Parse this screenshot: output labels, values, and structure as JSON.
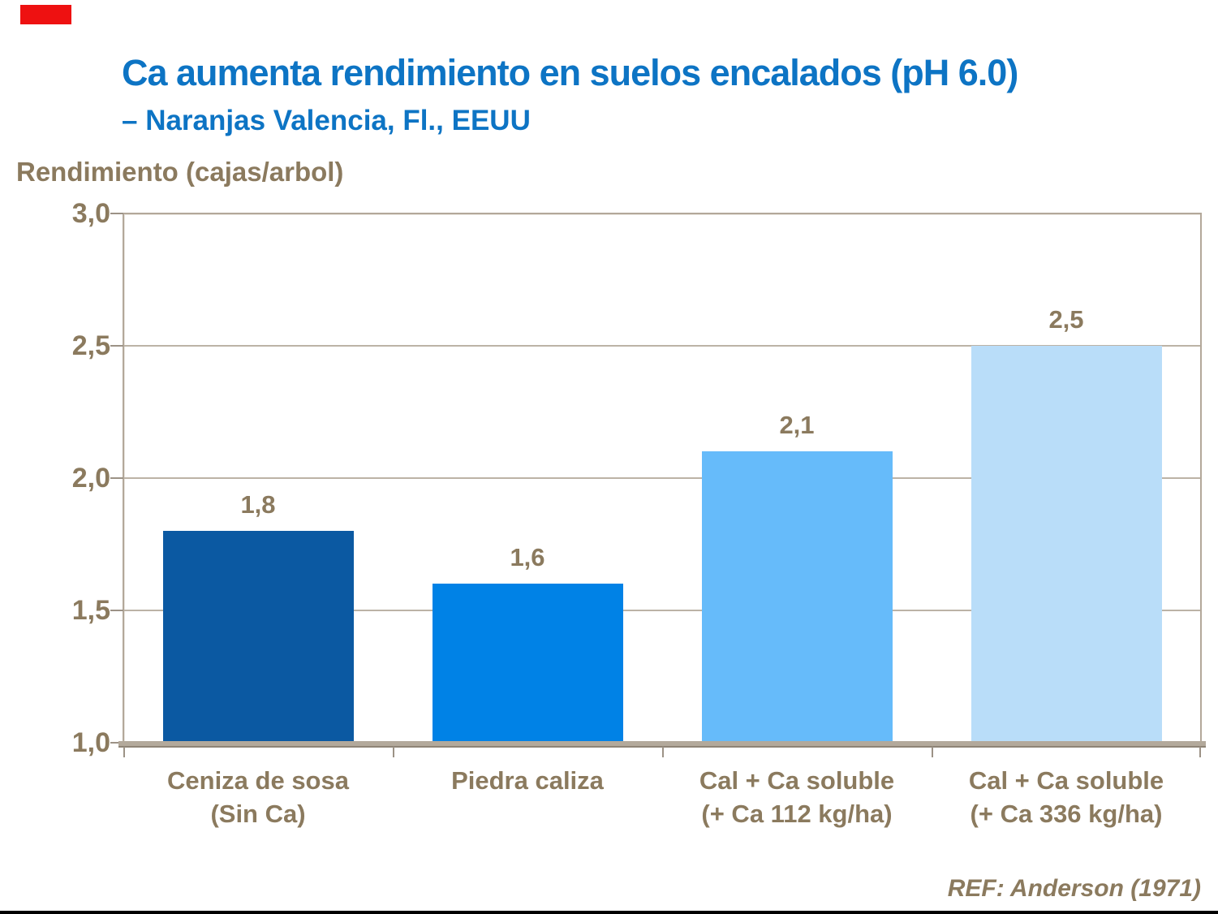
{
  "slide": {
    "title": "Ca aumenta rendimiento en suelos encalados (pH 6.0)",
    "subtitle": "– Naranjas Valencia, Fl., EEUU",
    "axis_unit_label": "Rendimiento (cajas/arbol)",
    "reference": "REF: Anderson (1971)"
  },
  "colors": {
    "title_blue": "#0D74C4",
    "text_brown": "#8B7A5E",
    "plot_border": "#B3A89A",
    "gridline": "#BCB3A6",
    "axis_band": "#B3A99B",
    "red_mark": "#EE1111",
    "bar_colors": [
      "#0B59A2",
      "#0082E6",
      "#66BBFA",
      "#B9DDF9"
    ]
  },
  "chart_data": {
    "type": "bar",
    "title": "Ca aumenta rendimiento en suelos encalados (pH 6.0) – Naranjas Valencia, Fl., EEUU",
    "xlabel": "",
    "ylabel": "Rendimiento (cajas/arbol)",
    "ylim": [
      1.0,
      3.0
    ],
    "grid": true,
    "legend": false,
    "categories": [
      "Ceniza de sosa\n(Sin Ca)",
      "Piedra caliza",
      "Cal + Ca soluble\n(+ Ca 112 kg/ha)",
      "Cal + Ca soluble\n(+ Ca 336 kg/ha)"
    ],
    "values": [
      1.8,
      1.6,
      2.1,
      2.5
    ],
    "value_labels": [
      "1,8",
      "1,6",
      "2,1",
      "2,5"
    ],
    "bar_colors": [
      "#0B59A2",
      "#0082E6",
      "#66BBFA",
      "#B9DDF9"
    ],
    "yticks": [
      {
        "label": "3,0",
        "value": 3.0
      },
      {
        "label": "2,5",
        "value": 2.5
      },
      {
        "label": "2,0",
        "value": 2.0
      },
      {
        "label": "1,5",
        "value": 1.5
      },
      {
        "label": "1,0",
        "value": 1.0
      }
    ],
    "annotation": "REF: Anderson (1971)"
  }
}
